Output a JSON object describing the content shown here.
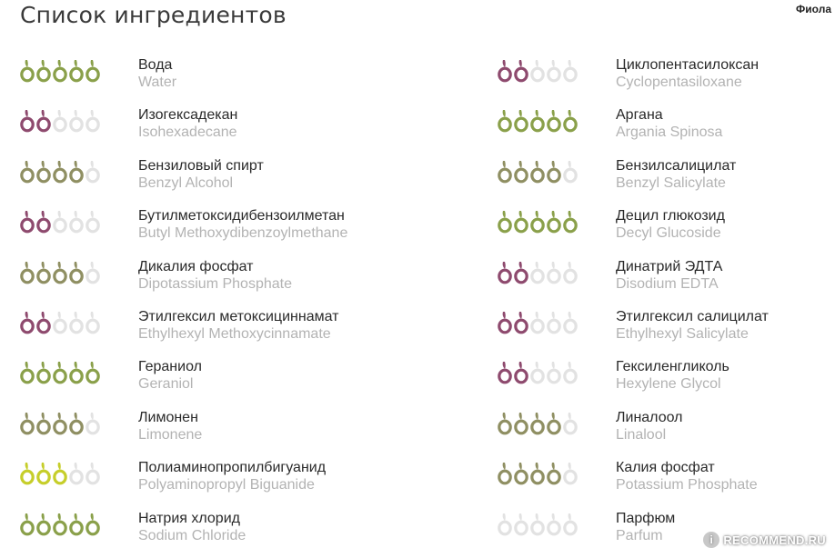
{
  "page": {
    "title": "Список ингредиентов",
    "user_label": "Фиола"
  },
  "colors": {
    "good": "#8aa04a",
    "medium": "#8f8f62",
    "poor": "#8e4a6e",
    "risky": "#c6ce2a",
    "empty": "#e2e2e2"
  },
  "left_ingredients": [
    {
      "ru": "Вода",
      "en": "Water",
      "rating": 5,
      "color": "good"
    },
    {
      "ru": "Изогексадекан",
      "en": "Isohexadecane",
      "rating": 2,
      "color": "poor"
    },
    {
      "ru": "Бензиловый спирт",
      "en": "Benzyl Alcohol",
      "rating": 4,
      "color": "medium"
    },
    {
      "ru": "Бутилметоксидибензоилметан",
      "en": "Butyl Methoxydibenzoylmethane",
      "rating": 2,
      "color": "poor"
    },
    {
      "ru": "Дикалия фосфат",
      "en": "Dipotassium Phosphate",
      "rating": 4,
      "color": "medium"
    },
    {
      "ru": "Этилгексил метоксициннамат",
      "en": "Ethylhexyl Methoxycinnamate",
      "rating": 2,
      "color": "poor"
    },
    {
      "ru": "Гераниол",
      "en": "Geraniol",
      "rating": 5,
      "color": "good"
    },
    {
      "ru": "Лимонен",
      "en": "Limonene",
      "rating": 4,
      "color": "medium"
    },
    {
      "ru": "Полиаминопропилбигуанид",
      "en": "Polyaminopropyl Biguanide",
      "rating": 3,
      "color": "risky"
    },
    {
      "ru": "Натрия хлорид",
      "en": "Sodium Chloride",
      "rating": 5,
      "color": "good"
    }
  ],
  "right_ingredients": [
    {
      "ru": "Циклопентасилоксан",
      "en": "Cyclopentasiloxane",
      "rating": 2,
      "color": "poor"
    },
    {
      "ru": "Аргана",
      "en": "Argania Spinosa",
      "rating": 5,
      "color": "good"
    },
    {
      "ru": "Бензилсалицилат",
      "en": "Benzyl Salicylate",
      "rating": 4,
      "color": "medium"
    },
    {
      "ru": "Децил глюкозид",
      "en": "Decyl Glucoside",
      "rating": 5,
      "color": "good"
    },
    {
      "ru": "Динатрий ЭДТА",
      "en": "Disodium EDTA",
      "rating": 2,
      "color": "poor"
    },
    {
      "ru": "Этилгексил салицилат",
      "en": "Ethylhexyl Salicylate",
      "rating": 2,
      "color": "poor"
    },
    {
      "ru": "Гексиленгликоль",
      "en": "Hexylene Glycol",
      "rating": 2,
      "color": "poor"
    },
    {
      "ru": "Линалоол",
      "en": "Linalool",
      "rating": 4,
      "color": "medium"
    },
    {
      "ru": "Калия фосфат",
      "en": "Potassium Phosphate",
      "rating": 4,
      "color": "medium"
    },
    {
      "ru": "Парфюм",
      "en": "Parfum",
      "rating": 0,
      "color": "empty"
    }
  ],
  "watermark": {
    "text": "RECOMMEND.RU",
    "icon": "i"
  }
}
